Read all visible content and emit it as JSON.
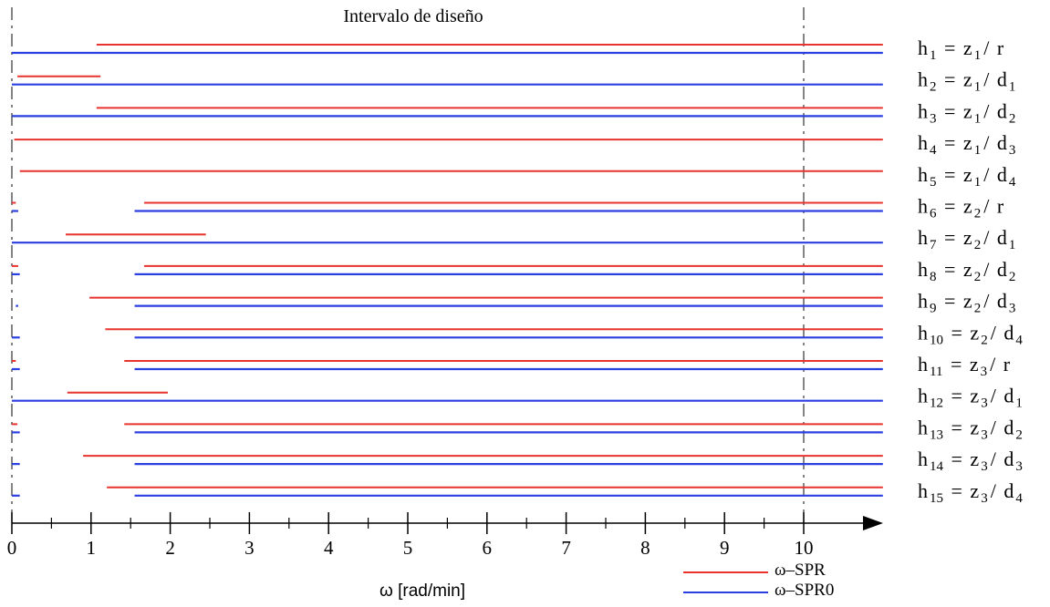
{
  "chart_data": {
    "type": "interval",
    "title": "Intervalo de diseño",
    "xlabel": "ω [rad/min]",
    "xlim": [
      0,
      11
    ],
    "x_ticks": [
      "0",
      "1",
      "2",
      "3",
      "4",
      "5",
      "6",
      "7",
      "8",
      "9",
      "10"
    ],
    "x_minor_ticks": [
      0.5,
      1.5,
      2.5,
      3.5,
      4.5,
      5.5,
      6.5,
      7.5,
      8.5,
      9.5
    ],
    "design_interval": [
      0,
      10
    ],
    "legend_position": "bottom-right",
    "series": [
      {
        "name": "ω–SPR",
        "color": "#e8332f"
      },
      {
        "name": "ω–SPR0",
        "color": "#2a3fe0"
      }
    ],
    "rows": [
      {
        "h": "h",
        "sub": "1",
        "z": "z",
        "zsub": "1",
        "d": "r",
        "dsub": "",
        "spr": [
          [
            1.07,
            11
          ]
        ],
        "spr0": [
          [
            0,
            11
          ]
        ]
      },
      {
        "h": "h",
        "sub": "2",
        "z": "z",
        "zsub": "1",
        "d": "d",
        "dsub": "1",
        "spr": [
          [
            0.07,
            1.12
          ]
        ],
        "spr0": [
          [
            0,
            11
          ]
        ]
      },
      {
        "h": "h",
        "sub": "3",
        "z": "z",
        "zsub": "1",
        "d": "d",
        "dsub": "2",
        "spr": [
          [
            1.07,
            11
          ]
        ],
        "spr0": [
          [
            0,
            11
          ]
        ]
      },
      {
        "h": "h",
        "sub": "4",
        "z": "z",
        "zsub": "1",
        "d": "d",
        "dsub": "3",
        "spr": [
          [
            0.03,
            11
          ]
        ],
        "spr0": []
      },
      {
        "h": "h",
        "sub": "5",
        "z": "z",
        "zsub": "1",
        "d": "d",
        "dsub": "4",
        "spr": [
          [
            0.1,
            11
          ]
        ],
        "spr0": []
      },
      {
        "h": "h",
        "sub": "6",
        "z": "z",
        "zsub": "2",
        "d": "r",
        "dsub": "",
        "spr": [
          [
            0,
            0.05
          ],
          [
            1.67,
            11
          ]
        ],
        "spr0": [
          [
            0,
            0.08
          ],
          [
            1.55,
            11
          ]
        ]
      },
      {
        "h": "h",
        "sub": "7",
        "z": "z",
        "zsub": "2",
        "d": "d",
        "dsub": "1",
        "spr": [
          [
            0.68,
            2.45
          ]
        ],
        "spr0": [
          [
            0,
            11
          ]
        ]
      },
      {
        "h": "h",
        "sub": "8",
        "z": "z",
        "zsub": "2",
        "d": "d",
        "dsub": "2",
        "spr": [
          [
            0,
            0.08
          ],
          [
            1.67,
            11
          ]
        ],
        "spr0": [
          [
            0,
            0.1
          ],
          [
            1.55,
            11
          ]
        ]
      },
      {
        "h": "h",
        "sub": "9",
        "z": "z",
        "zsub": "2",
        "d": "d",
        "dsub": "3",
        "spr": [
          [
            0.98,
            11
          ]
        ],
        "spr0": [
          [
            0.05,
            0.08
          ],
          [
            1.55,
            11
          ]
        ]
      },
      {
        "h": "h",
        "sub": "10",
        "z": "z",
        "zsub": "2",
        "d": "d",
        "dsub": "4",
        "spr": [
          [
            1.18,
            11
          ]
        ],
        "spr0": [
          [
            0,
            0.1
          ],
          [
            1.55,
            11
          ]
        ]
      },
      {
        "h": "h",
        "sub": "11",
        "z": "z",
        "zsub": "3",
        "d": "r",
        "dsub": "",
        "spr": [
          [
            0,
            0.05
          ],
          [
            1.42,
            11
          ]
        ],
        "spr0": [
          [
            0,
            0.1
          ],
          [
            1.55,
            11
          ]
        ]
      },
      {
        "h": "h",
        "sub": "12",
        "z": "z",
        "zsub": "3",
        "d": "d",
        "dsub": "1",
        "spr": [
          [
            0.7,
            1.97
          ]
        ],
        "spr0": [
          [
            0,
            11
          ]
        ]
      },
      {
        "h": "h",
        "sub": "13",
        "z": "z",
        "zsub": "3",
        "d": "d",
        "dsub": "2",
        "spr": [
          [
            0,
            0.07
          ],
          [
            1.42,
            11
          ]
        ],
        "spr0": [
          [
            0,
            0.1
          ],
          [
            1.55,
            11
          ]
        ]
      },
      {
        "h": "h",
        "sub": "14",
        "z": "z",
        "zsub": "3",
        "d": "d",
        "dsub": "3",
        "spr": [
          [
            0.9,
            11
          ]
        ],
        "spr0": [
          [
            0,
            0.1
          ],
          [
            1.55,
            11
          ]
        ]
      },
      {
        "h": "h",
        "sub": "15",
        "z": "z",
        "zsub": "3",
        "d": "d",
        "dsub": "4",
        "spr": [
          [
            1.2,
            11
          ]
        ],
        "spr0": [
          [
            0,
            0.1
          ],
          [
            1.55,
            11
          ]
        ]
      }
    ]
  }
}
